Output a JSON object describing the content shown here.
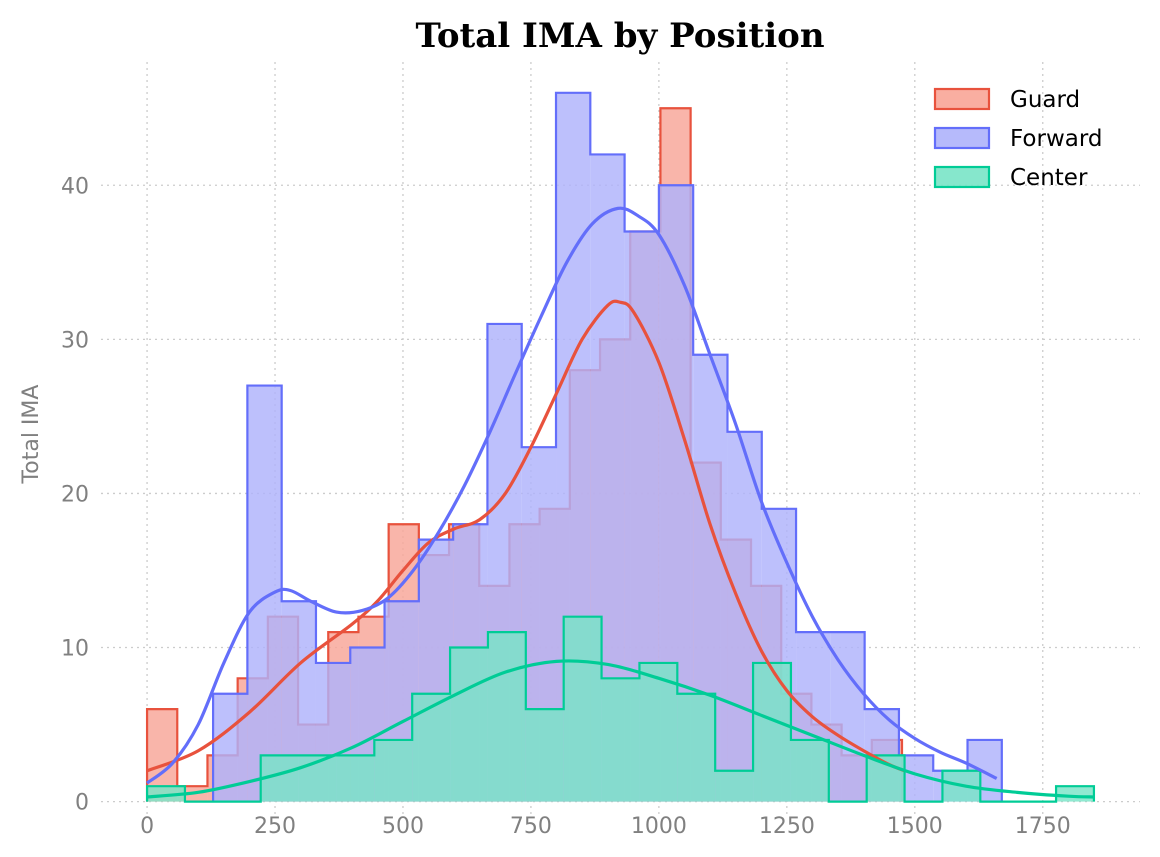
{
  "chart_data": {
    "type": "histogram",
    "title": "Total IMA by Position",
    "xlabel": "",
    "ylabel": "Total IMA",
    "xlim": [
      -90,
      1940
    ],
    "ylim": [
      -1,
      48
    ],
    "xticks": [
      0,
      250,
      500,
      750,
      1000,
      1250,
      1500,
      1750
    ],
    "yticks": [
      0,
      10,
      20,
      30,
      40
    ],
    "grid": true,
    "legend_position": "top-right",
    "series": [
      {
        "name": "Guard",
        "color": "#e8523d",
        "fill": "#f8a597",
        "bin_edges": [
          0,
          59,
          118,
          177,
          236,
          295,
          354,
          413,
          472,
          531,
          590,
          649,
          708,
          767,
          826,
          885,
          944,
          1003,
          1062,
          1121,
          1180,
          1239,
          1298,
          1357,
          1416,
          1475
        ],
        "counts": [
          6,
          1,
          3,
          8,
          12,
          5,
          11,
          12,
          18,
          16,
          18,
          14,
          18,
          19,
          28,
          30,
          37,
          45,
          22,
          17,
          14,
          7,
          5,
          3,
          4
        ],
        "kde": [
          [
            0,
            2
          ],
          [
            100,
            3.3
          ],
          [
            200,
            5.8
          ],
          [
            300,
            9
          ],
          [
            400,
            11.5
          ],
          [
            450,
            13
          ],
          [
            500,
            15
          ],
          [
            550,
            16.8
          ],
          [
            600,
            17.7
          ],
          [
            650,
            18.3
          ],
          [
            700,
            20
          ],
          [
            750,
            23
          ],
          [
            800,
            26.5
          ],
          [
            850,
            30
          ],
          [
            900,
            32.2
          ],
          [
            925,
            32.4
          ],
          [
            950,
            31.8
          ],
          [
            1000,
            28.5
          ],
          [
            1050,
            23.5
          ],
          [
            1100,
            18
          ],
          [
            1150,
            13.5
          ],
          [
            1200,
            9.8
          ],
          [
            1250,
            7.2
          ],
          [
            1300,
            5.5
          ],
          [
            1350,
            4.3
          ],
          [
            1400,
            3.3
          ],
          [
            1450,
            2.4
          ],
          [
            1480,
            2
          ]
        ]
      },
      {
        "name": "Forward",
        "color": "#636efa",
        "fill": "#aeb2fb",
        "bin_edges": [
          129,
          196,
          263,
          330,
          397,
          464,
          531,
          598,
          665,
          732,
          799,
          866,
          933,
          1000,
          1067,
          1134,
          1201,
          1268,
          1335,
          1402,
          1469,
          1536,
          1603,
          1670
        ],
        "counts": [
          7,
          27,
          13,
          9,
          10,
          13,
          17,
          18,
          31,
          23,
          46,
          42,
          37,
          40,
          29,
          24,
          19,
          11,
          11,
          6,
          3,
          2,
          4
        ],
        "kde": [
          [
            0,
            1.2
          ],
          [
            50,
            2.5
          ],
          [
            100,
            5
          ],
          [
            150,
            9
          ],
          [
            200,
            12.3
          ],
          [
            250,
            13.6
          ],
          [
            280,
            13.7
          ],
          [
            320,
            13
          ],
          [
            370,
            12.3
          ],
          [
            420,
            12.4
          ],
          [
            470,
            13.2
          ],
          [
            520,
            15
          ],
          [
            570,
            17.5
          ],
          [
            620,
            20.5
          ],
          [
            670,
            24
          ],
          [
            720,
            27.8
          ],
          [
            770,
            31.5
          ],
          [
            820,
            35
          ],
          [
            870,
            37.5
          ],
          [
            920,
            38.5
          ],
          [
            960,
            38
          ],
          [
            1000,
            36.8
          ],
          [
            1050,
            33.5
          ],
          [
            1100,
            29
          ],
          [
            1150,
            24.5
          ],
          [
            1200,
            19.5
          ],
          [
            1250,
            15.5
          ],
          [
            1300,
            12
          ],
          [
            1350,
            9.2
          ],
          [
            1400,
            7
          ],
          [
            1450,
            5.3
          ],
          [
            1500,
            4.1
          ],
          [
            1550,
            3.2
          ],
          [
            1600,
            2.5
          ],
          [
            1660,
            1.5
          ]
        ]
      },
      {
        "name": "Center",
        "color": "#00cc96",
        "fill": "#79e4c7",
        "bin_edges": [
          0,
          74,
          148,
          222,
          296,
          370,
          444,
          518,
          592,
          666,
          740,
          814,
          888,
          962,
          1036,
          1110,
          1184,
          1258,
          1332,
          1406,
          1480,
          1554,
          1628,
          1702,
          1776,
          1850
        ],
        "counts": [
          1,
          0,
          0,
          3,
          3,
          3,
          4,
          7,
          10,
          11,
          6,
          12,
          8,
          9,
          7,
          2,
          9,
          4,
          0,
          3,
          0,
          2,
          0,
          0,
          1
        ],
        "kde": [
          [
            0,
            0.3
          ],
          [
            100,
            0.6
          ],
          [
            200,
            1.3
          ],
          [
            300,
            2.2
          ],
          [
            400,
            3.5
          ],
          [
            500,
            5.2
          ],
          [
            600,
            6.9
          ],
          [
            700,
            8.4
          ],
          [
            800,
            9.1
          ],
          [
            900,
            8.9
          ],
          [
            1000,
            8
          ],
          [
            1100,
            6.9
          ],
          [
            1200,
            5.6
          ],
          [
            1300,
            4.3
          ],
          [
            1400,
            3
          ],
          [
            1500,
            1.8
          ],
          [
            1600,
            1
          ],
          [
            1700,
            0.6
          ],
          [
            1800,
            0.35
          ],
          [
            1850,
            0.3
          ]
        ]
      }
    ]
  }
}
